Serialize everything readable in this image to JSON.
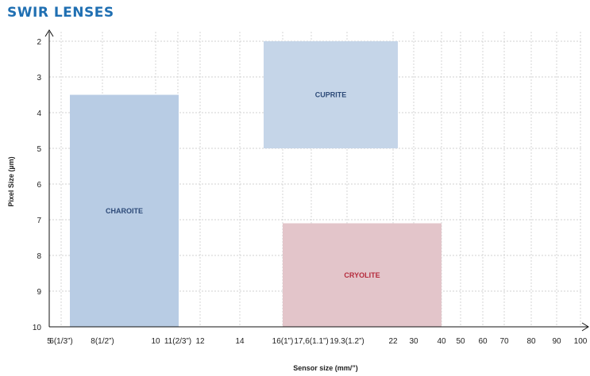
{
  "page": {
    "title": "SWIR LENSES"
  },
  "chart_data": {
    "type": "range-regions",
    "xlabel": "Sensor size (mm/”)",
    "ylabel": "Pixel Size (µm)",
    "grid": true,
    "y_axis": {
      "min": 2,
      "max": 10,
      "ticks": [
        2,
        3,
        4,
        5,
        6,
        7,
        8,
        9,
        10
      ],
      "inverted": true
    },
    "x_ticks": [
      "5",
      "6(1/3”)",
      "8(1/2”)",
      "10",
      "11(2/3”)",
      "12",
      "14",
      "16(1”)",
      "17,6(1.1”)",
      "19.3(1.2”)",
      "22",
      "30",
      "40",
      "50",
      "60",
      "70",
      "80",
      "90",
      "100"
    ],
    "regions": [
      {
        "name": "CHAROITE",
        "x_from": "6(1/3”)",
        "x_to": "11(2/3”)",
        "y_from": 3.5,
        "y_to": 10,
        "fill": "#b8cce4",
        "label_color": "#2d4a78"
      },
      {
        "name": "CUPRITE",
        "x_from": "16(1”)",
        "x_to": "22",
        "y_from": 2,
        "y_to": 5,
        "fill": "#c5d5e8",
        "label_color": "#2d4a78"
      },
      {
        "name": "CRYOLITE",
        "x_from": "16(1”)",
        "x_to": "40",
        "y_from": 7.1,
        "y_to": 10,
        "fill": "#e3c5ca",
        "label_color": "#b52b3c"
      }
    ]
  }
}
